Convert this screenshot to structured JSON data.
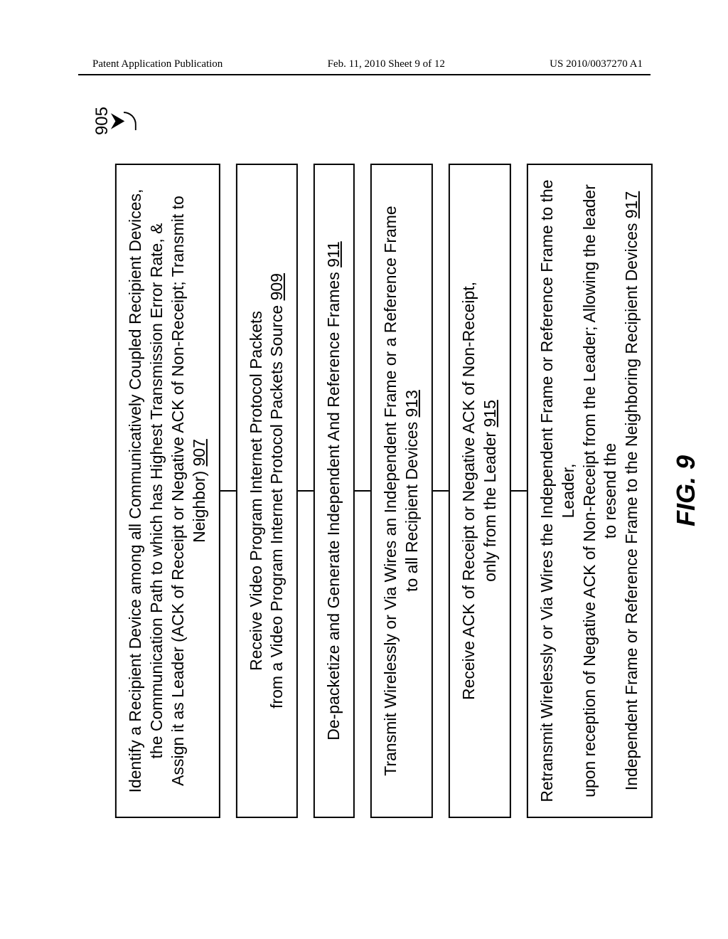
{
  "header": {
    "left": "Patent Application Publication",
    "center": "Feb. 11, 2010  Sheet 9 of 12",
    "right": "US 2010/0037270 A1"
  },
  "reference_number": "905",
  "figure_caption": "FIG. 9",
  "steps": [
    {
      "lines": [
        "Identify a Recipient Device among all Communicatively Coupled Recipient Devices,",
        "the Communication Path to which has Highest Transmission Error Rate, &",
        "Assign it as Leader (ACK of Receipt or Negative ACK of Non-Receipt; Transmit to Neighbor)"
      ],
      "ref": "907"
    },
    {
      "lines": [
        "Receive Video Program Internet Protocol Packets",
        "from a Video Program Internet Protocol Packets Source"
      ],
      "ref": "909"
    },
    {
      "lines": [
        "De-packetize and Generate Independent And Reference Frames"
      ],
      "ref": "911"
    },
    {
      "lines": [
        "Transmit Wirelessly or Via Wires an Independent Frame or a Reference Frame",
        "to all Recipient Devices"
      ],
      "ref": "913"
    },
    {
      "lines": [
        "Receive ACK of Receipt or Negative ACK of Non-Receipt,",
        "only from the Leader"
      ],
      "ref": "915"
    },
    {
      "lines": [
        "Retransmit Wirelessly or Via Wires the Independent Frame or Reference Frame to the Leader,",
        "upon reception of Negative ACK of Non-Receipt from the Leader; Allowing the leader to resend the",
        "Independent Frame or Reference Frame to the Neighboring Recipient Devices"
      ],
      "ref": "917"
    }
  ]
}
